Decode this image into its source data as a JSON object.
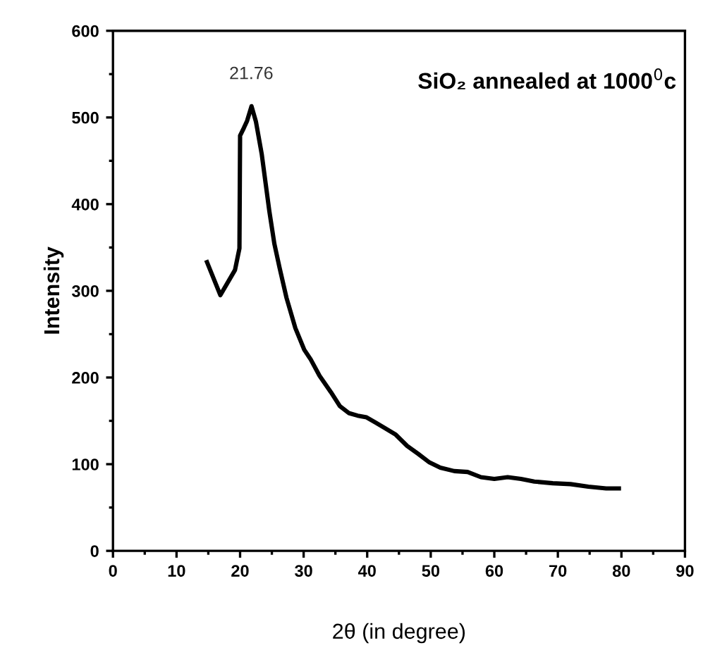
{
  "chart_data": {
    "type": "line",
    "xlabel": "2θ (in degree)",
    "ylabel": "Intensity",
    "annotations": [
      {
        "text": "21.76",
        "x": 21.76,
        "y": 513
      },
      "SiO₂ annealed at 1000$^{0}$c"
    ],
    "xlim": [
      0,
      90
    ],
    "xticks": [
      0,
      10,
      20,
      30,
      40,
      50,
      60,
      70,
      80,
      90
    ],
    "ylim": [
      0,
      600
    ],
    "yticks": [
      0,
      100,
      200,
      300,
      400,
      500,
      600
    ],
    "grid": false,
    "marker": "none",
    "line_style": "solid",
    "series": [
      {
        "color": "#000000",
        "x": [
          14.8,
          16.9,
          19.2,
          19.9,
          20.0,
          20.6,
          21.1,
          21.8,
          22.5,
          23.4,
          24.6,
          25.4,
          26.2,
          27.3,
          28.7,
          30.1,
          31.1,
          32.5,
          34.3,
          35.7,
          37.1,
          38.5,
          39.9,
          41.3,
          42.7,
          44.5,
          46.3,
          48.0,
          49.8,
          51.5,
          53.7,
          55.8,
          57.9,
          60.0,
          62.1,
          64.2,
          66.3,
          69.2,
          72.0,
          74.8,
          77.6,
          79.6
        ],
        "values": [
          333,
          295,
          324,
          349,
          479,
          488,
          496,
          513,
          495,
          458,
          392,
          354,
          327,
          292,
          257,
          232,
          221,
          202,
          183,
          167,
          159,
          156,
          154,
          148,
          142,
          134,
          121,
          112,
          102,
          96,
          92,
          91,
          85,
          83,
          85,
          83,
          80,
          78,
          77,
          74,
          72,
          72
        ]
      }
    ]
  }
}
